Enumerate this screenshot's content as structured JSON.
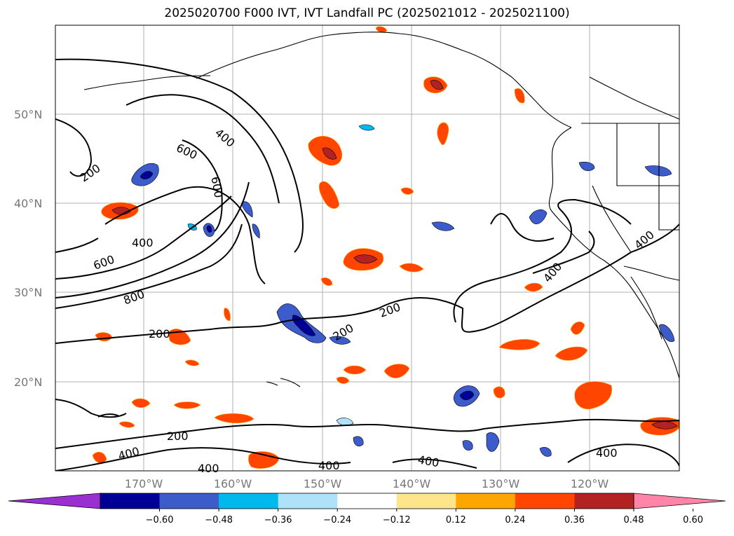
{
  "title": "2025020700 F000 IVT, IVT Landfall PC (2025021012 - 2025021100)",
  "map": {
    "lat_ticks": [
      "50°N",
      "40°N",
      "30°N",
      "20°N"
    ],
    "lon_ticks": [
      "170°W",
      "160°W",
      "150°W",
      "140°W",
      "130°W",
      "120°W"
    ],
    "contour_labels": [
      "200",
      "400",
      "600",
      "800"
    ],
    "colors": {
      "contour": "#000000",
      "coast": "#000000",
      "grid": "#b0b0b0"
    }
  },
  "colorbar": {
    "ticks": [
      "−0.60",
      "−0.48",
      "−0.36",
      "−0.24",
      "−0.12",
      "0.12",
      "0.24",
      "0.36",
      "0.48",
      "0.60"
    ],
    "colors": [
      "#9b30d0",
      "#000096",
      "#3c5ccc",
      "#00b8f0",
      "#aee2fa",
      "#ffffff",
      "#fde68a",
      "#ffa500",
      "#ff4500",
      "#b22222",
      "#ff85a8"
    ]
  }
}
